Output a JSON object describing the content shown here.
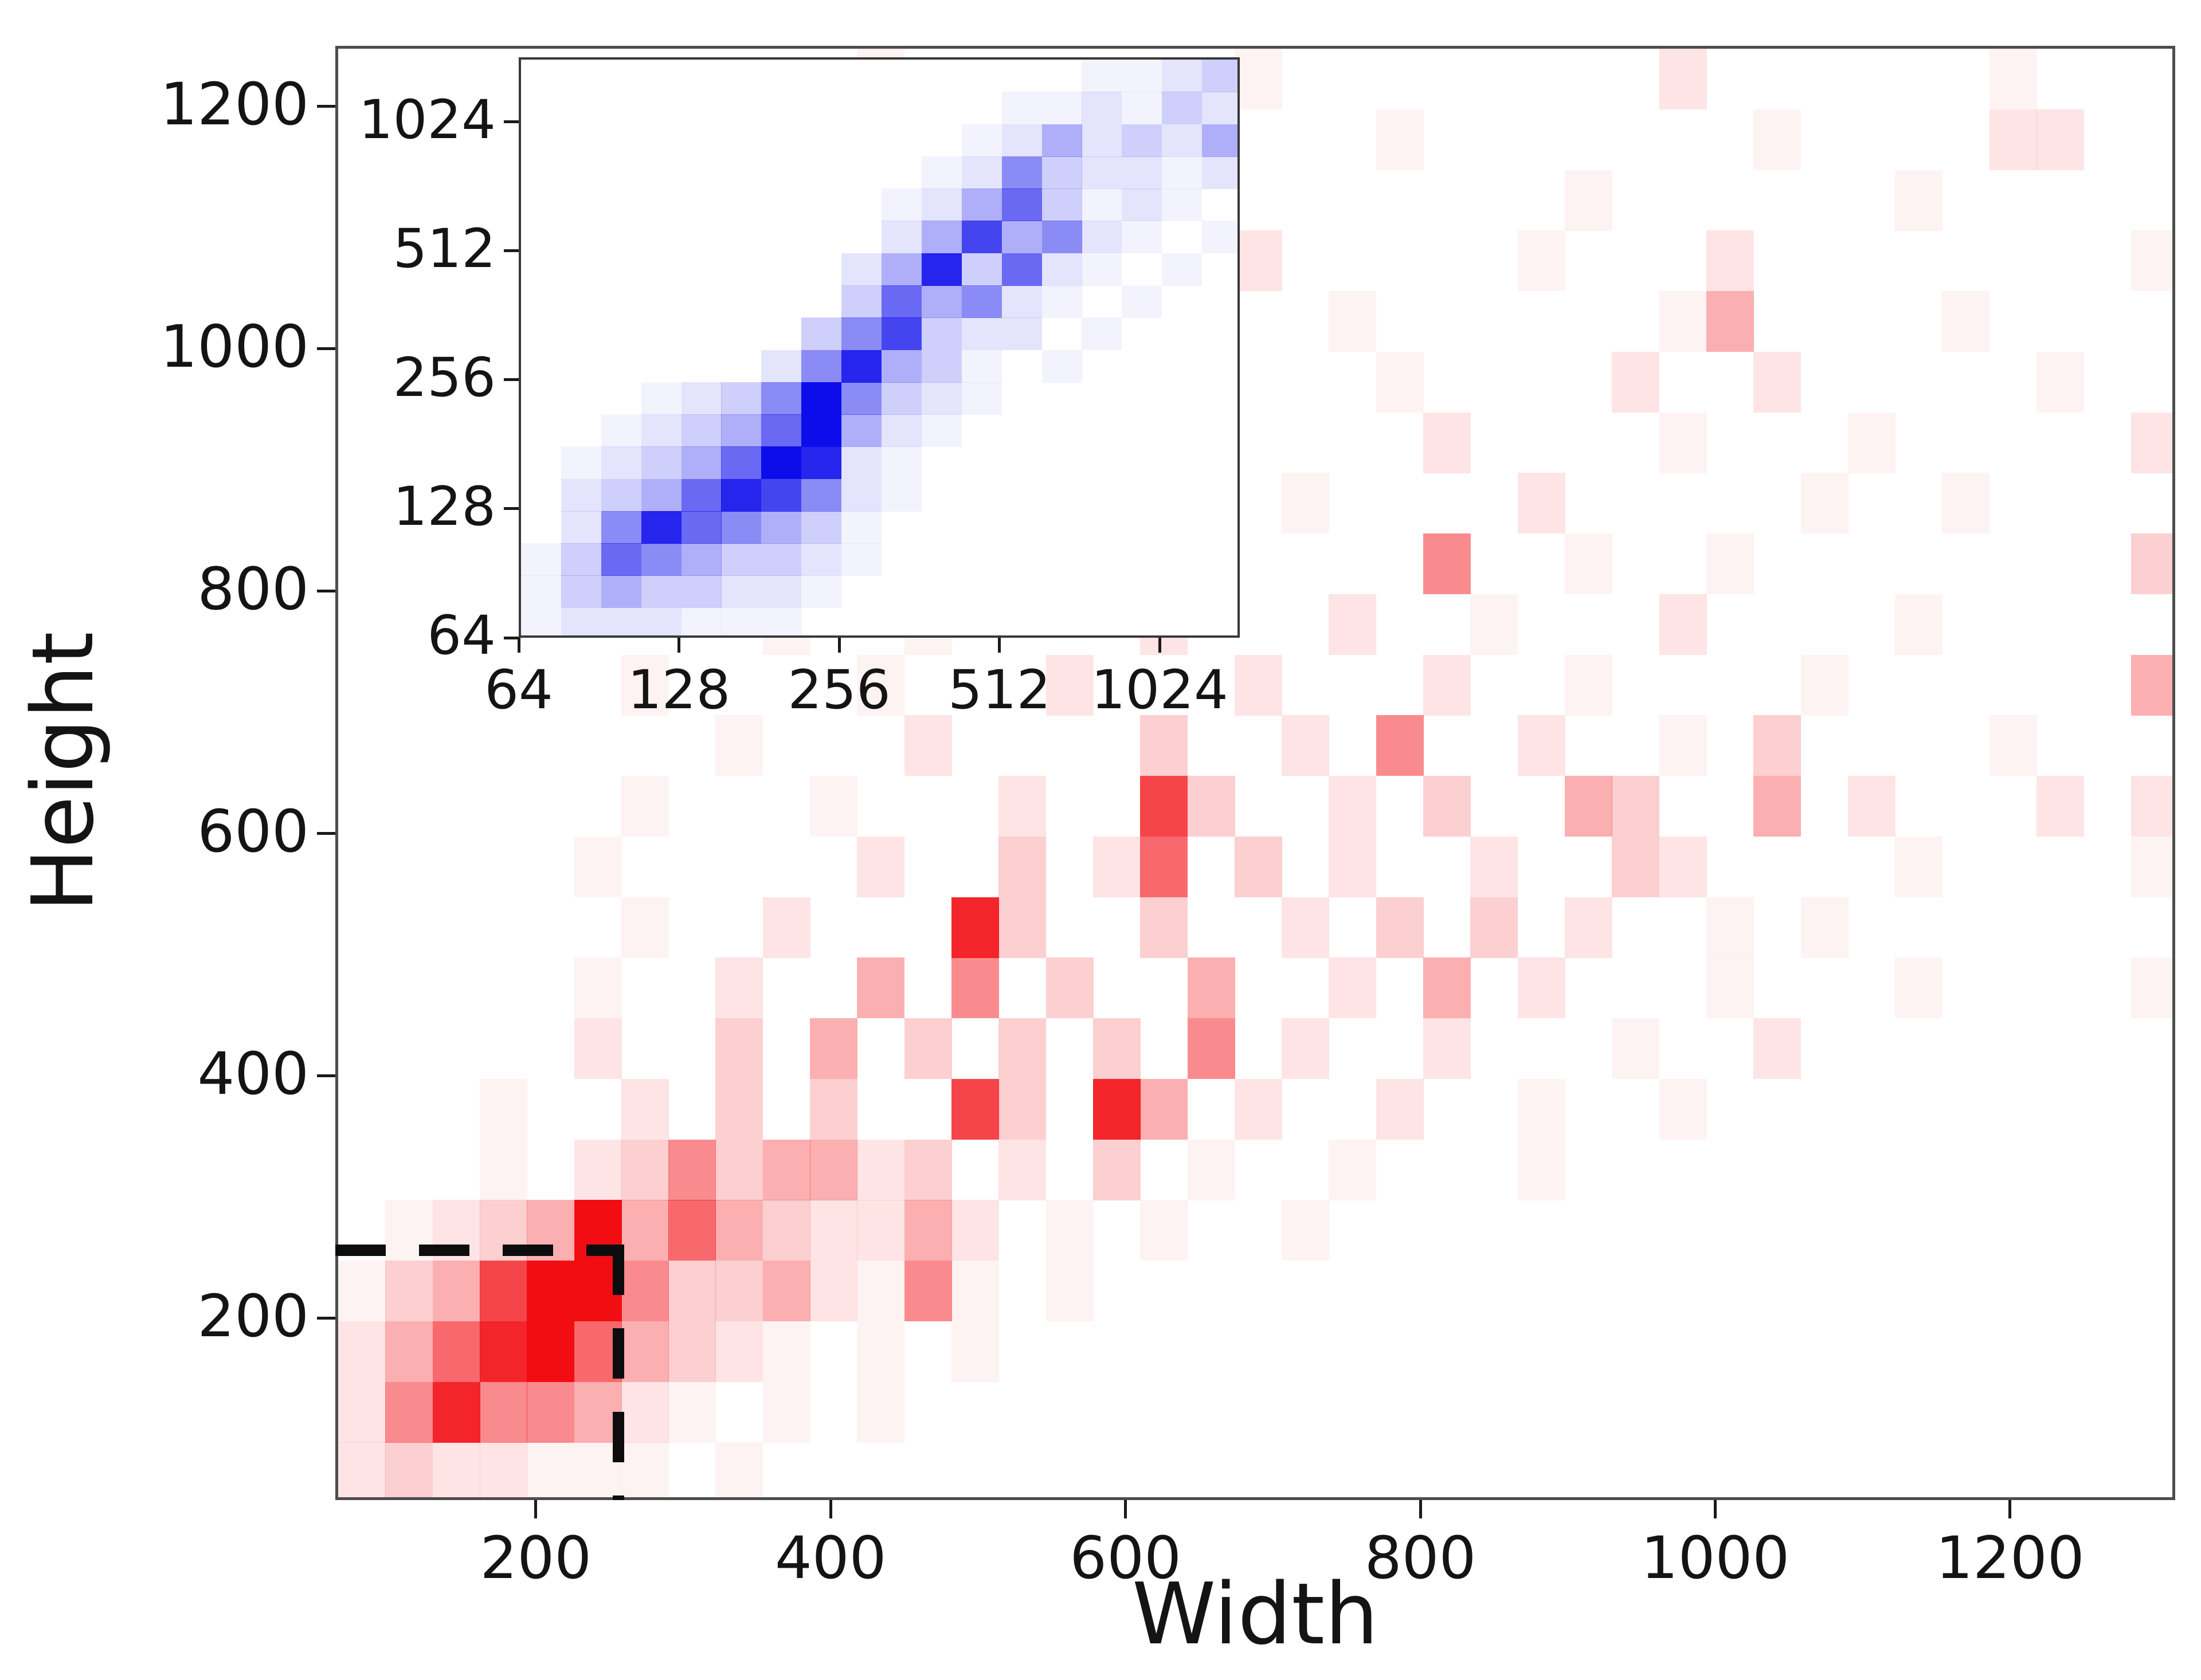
{
  "figure": {
    "background_color": "#ffffff",
    "description_visible_text_only": true
  },
  "chart_data": [
    {
      "type": "heatmap",
      "role": "main-2d-histogram",
      "title": "",
      "xlabel": "Width",
      "ylabel": "Height",
      "x_scale": "linear",
      "y_scale": "linear",
      "xlim": [
        64,
        1312
      ],
      "ylim": [
        50,
        1250
      ],
      "x_ticks": [
        200,
        400,
        600,
        800,
        1000,
        1200
      ],
      "y_ticks": [
        200,
        400,
        600,
        800,
        1000,
        1200
      ],
      "grid": false,
      "legend": "none",
      "colormap": "white-to-red",
      "max_color_hex": "#f20d13",
      "threshold_value": 256,
      "threshold_style": "dashed-black",
      "n_cols": 39,
      "n_rows": 24,
      "cell_intensity_scale_0_to_9": true,
      "cells_rows_top_to_bottom": [
        "000000000001000000010000000020000001000",
        "000000000100000010000010000000100002200",
        "000000001000010000100000001000000100000",
        "000000000000100000020000010002000000001",
        "000000000001000010000100000014000010000",
        "000000000010002000000010000200200000100",
        "000000000000100001000002000010001000002",
        "000000000001000200001000020000010010000",
        "000000001000001000200005001001000000003",
        "000000000100100002000200100020000100000",
        "000000100001000200020002001000010000004",
        "000000001000200003002050020010300001000",
        "000000100010002007300203004300402000202",
        "000001000002003026030200200320000100001",
        "000000100200083003002030302001010000000",
        "000001002004050300400204020001000100001",
        "000002003040303030502002000100200000000",
        "000100203030073084020020010010000000000",
        "000102353442302030100100010000000000000",
        "012349464322420101001000000000000000000",
        "134799533421510100000000000000000000000",
        "246896432101010000000000000000000000000",
        "258554210101000000000000000000000000000",
        "232211101000000000000000000000000000000"
      ]
    },
    {
      "type": "heatmap",
      "role": "inset-2d-histogram-log-axes",
      "title": "",
      "xlabel": "",
      "ylabel": "",
      "x_scale": "log2",
      "y_scale": "log2",
      "xlim": [
        64,
        1448
      ],
      "ylim": [
        64,
        1448
      ],
      "x_ticks": [
        64,
        128,
        256,
        512,
        1024
      ],
      "y_ticks": [
        64,
        128,
        256,
        512,
        1024
      ],
      "grid": false,
      "legend": "none",
      "colormap": "white-to-blue",
      "max_color_hex": "#0d0dec",
      "threshold_value": 256,
      "threshold_style": "dashed-black",
      "n_cols": 18,
      "n_rows": 18,
      "cell_intensity_scale_0_to_9": true,
      "cells_rows_top_to_bottom": [
        "000000000000001123",
        "000000000000112132",
        "000000000001242324",
        "000000000012532212",
        "000000000124631210",
        "000000000247452101",
        "000000002483621010",
        "000000003645210100",
        "000000035732201000",
        "000000258431010000",
        "000123595321000000",
        "001234694210000000",
        "012346982100000000",
        "023468752100000000",
        "025865431000000000",
        "136543321000000000",
        "134332210000000000",
        "122211100000000000"
      ]
    }
  ]
}
